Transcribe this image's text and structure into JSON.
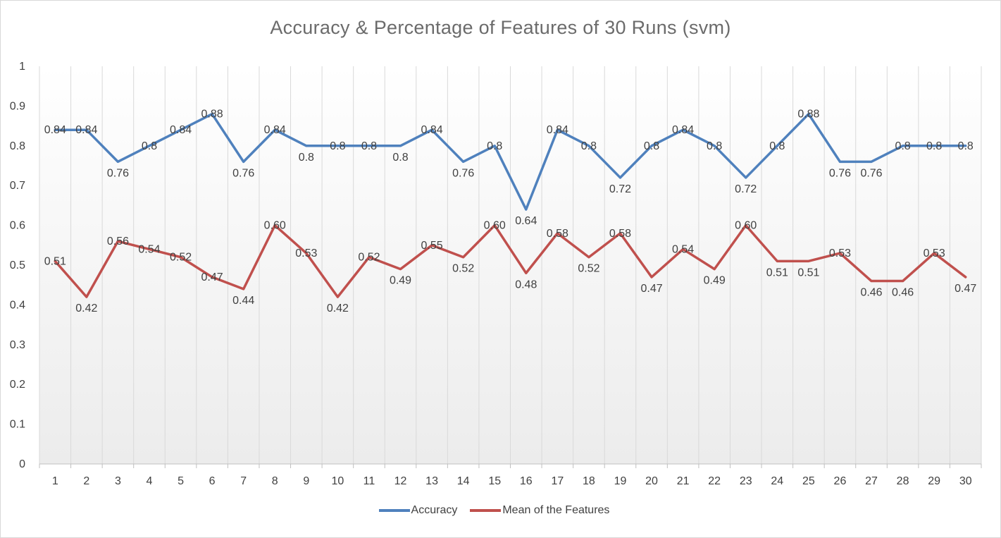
{
  "chart_data": {
    "type": "line",
    "title": "Accuracy & Percentage of Features of 30 Runs (svm)",
    "xlabel": "",
    "ylabel": "",
    "categories": [
      "1",
      "2",
      "3",
      "4",
      "5",
      "6",
      "7",
      "8",
      "9",
      "10",
      "11",
      "12",
      "13",
      "14",
      "15",
      "16",
      "17",
      "18",
      "19",
      "20",
      "21",
      "22",
      "23",
      "24",
      "25",
      "26",
      "27",
      "28",
      "29",
      "30"
    ],
    "ylim": [
      0,
      1
    ],
    "yticks": [
      "0",
      "0.1",
      "0.2",
      "0.3",
      "0.4",
      "0.5",
      "0.6",
      "0.7",
      "0.8",
      "0.9",
      "1"
    ],
    "grid": "vertical",
    "legend_position": "bottom",
    "series": [
      {
        "name": "Accuracy",
        "color": "#4f81bd",
        "values": [
          0.84,
          0.84,
          0.76,
          0.8,
          0.84,
          0.88,
          0.76,
          0.84,
          0.8,
          0.8,
          0.8,
          0.8,
          0.84,
          0.76,
          0.8,
          0.64,
          0.84,
          0.8,
          0.72,
          0.8,
          0.84,
          0.8,
          0.72,
          0.8,
          0.88,
          0.76,
          0.76,
          0.8,
          0.8,
          0.8
        ],
        "labels": [
          "0.84",
          "0.84",
          "0.76",
          "0.8",
          "0.84",
          "0.88",
          "0.76",
          "0.84",
          "0.8",
          "0.8",
          "0.8",
          "0.8",
          "0.84",
          "0.76",
          "0.8",
          "0.64",
          "0.84",
          "0.8",
          "0.72",
          "0.8",
          "0.84",
          "0.8",
          "0.72",
          "0.8",
          "0.88",
          "0.76",
          "0.76",
          "0.8",
          "0.8",
          "0.8"
        ]
      },
      {
        "name": "Mean of the Features",
        "color": "#c0504d",
        "values": [
          0.51,
          0.42,
          0.56,
          0.54,
          0.52,
          0.47,
          0.44,
          0.6,
          0.53,
          0.42,
          0.52,
          0.49,
          0.55,
          0.52,
          0.6,
          0.48,
          0.58,
          0.52,
          0.58,
          0.47,
          0.54,
          0.49,
          0.6,
          0.51,
          0.51,
          0.53,
          0.46,
          0.46,
          0.53,
          0.47
        ],
        "labels": [
          "0.51",
          "0.42",
          "0.56",
          "0.54",
          "0.52",
          "0.47",
          "0.44",
          "0.60",
          "0.53",
          "0.42",
          "0.52",
          "0.49",
          "0.55",
          "0.52",
          "0.60",
          "0.48",
          "0.58",
          "0.52",
          "0.58",
          "0.47",
          "0.54",
          "0.49",
          "0.60",
          "0.51",
          "0.51",
          "0.53",
          "0.46",
          "0.46",
          "0.53",
          "0.47"
        ]
      }
    ]
  }
}
